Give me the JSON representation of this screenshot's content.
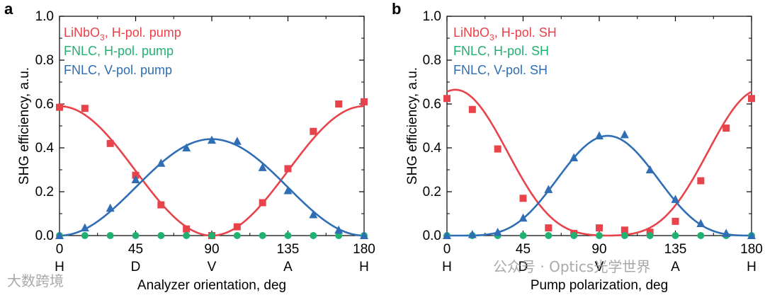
{
  "colors": {
    "red": "#e8424a",
    "green": "#20b070",
    "blue": "#2f6db5"
  },
  "watermarks": {
    "left": "大数跨境",
    "right": "公众号 · Optics光学世界"
  },
  "chart_data": [
    {
      "panel": "a",
      "type": "line+scatter",
      "xlabel": "Analyzer orientation, deg",
      "ylabel": "SHG efficiency, a.u.",
      "xlim": [
        0,
        180
      ],
      "ylim": [
        0,
        1.0
      ],
      "xticks": [
        0,
        45,
        90,
        135,
        180
      ],
      "yticks": [
        0.0,
        0.2,
        0.4,
        0.6,
        0.8,
        1.0
      ],
      "xtick_letters": [
        "H",
        "D",
        "V",
        "A",
        "H"
      ],
      "legend": [
        {
          "label": "LiNbO",
          "sub": "3",
          "rest": ", H-pol. pump",
          "color_key": "red"
        },
        {
          "label": "FNLC, H-pol. pump",
          "sub": "",
          "rest": "",
          "color_key": "green"
        },
        {
          "label": "FNLC, V-pol. pump",
          "sub": "",
          "rest": "",
          "color_key": "blue"
        }
      ],
      "series": [
        {
          "name": "LiNbO3, H-pol. pump",
          "marker": "square",
          "color_key": "red",
          "x": [
            0,
            15,
            30,
            45,
            60,
            75,
            90,
            105,
            120,
            135,
            150,
            165,
            180
          ],
          "y": [
            0.585,
            0.58,
            0.42,
            0.275,
            0.14,
            0.03,
            0.0,
            0.04,
            0.15,
            0.305,
            0.475,
            0.6,
            0.61
          ],
          "fit": {
            "kind": "cos2",
            "amp": 0.59,
            "x0": 0,
            "offset": 0.0
          }
        },
        {
          "name": "FNLC, H-pol. pump",
          "marker": "circle",
          "color_key": "green",
          "x": [
            0,
            15,
            30,
            45,
            60,
            75,
            90,
            105,
            120,
            135,
            150,
            165,
            180
          ],
          "y": [
            0,
            0,
            0,
            0,
            0,
            0,
            0,
            0,
            0,
            0,
            0,
            0,
            0
          ]
        },
        {
          "name": "FNLC, V-pol. pump",
          "marker": "triangle",
          "color_key": "blue",
          "x": [
            0,
            15,
            30,
            45,
            60,
            75,
            90,
            105,
            120,
            135,
            150,
            165,
            180
          ],
          "y": [
            0.0,
            0.035,
            0.125,
            0.255,
            0.33,
            0.4,
            0.435,
            0.43,
            0.31,
            0.205,
            0.095,
            0.025,
            0.0
          ],
          "fit": {
            "kind": "sin2",
            "amp": 0.44,
            "x0": 0,
            "offset": 0.0
          }
        }
      ]
    },
    {
      "panel": "b",
      "type": "line+scatter",
      "xlabel": "Pump polarization, deg",
      "ylabel": "SHG efficiency, a.u.",
      "xlim": [
        0,
        180
      ],
      "ylim": [
        0,
        1.0
      ],
      "xticks": [
        0,
        45,
        90,
        135,
        180
      ],
      "yticks": [
        0.0,
        0.2,
        0.4,
        0.6,
        0.8,
        1.0
      ],
      "xtick_letters": [
        "H",
        "D",
        "V",
        "A",
        "H"
      ],
      "legend": [
        {
          "label": "LiNbO",
          "sub": "3",
          "rest": ", H-pol. SH",
          "color_key": "red"
        },
        {
          "label": "FNLC, H-pol. SH",
          "sub": "",
          "rest": "",
          "color_key": "green"
        },
        {
          "label": "FNLC, V-pol. SH",
          "sub": "",
          "rest": "",
          "color_key": "blue"
        }
      ],
      "series": [
        {
          "name": "LiNbO3, H-pol. SH",
          "marker": "square",
          "color_key": "red",
          "x": [
            0,
            15,
            30,
            45,
            60,
            75,
            90,
            105,
            120,
            135,
            150,
            165,
            180
          ],
          "y": [
            0.625,
            0.575,
            0.395,
            0.17,
            0.035,
            0.01,
            0.035,
            0.025,
            0.015,
            0.065,
            0.25,
            0.49,
            0.625
          ],
          "fit": {
            "kind": "quartic",
            "amp": 0.665,
            "x0": 5,
            "offset": 0.0
          }
        },
        {
          "name": "FNLC, H-pol. SH",
          "marker": "circle",
          "color_key": "green",
          "x": [
            0,
            15,
            30,
            45,
            60,
            75,
            90,
            105,
            120,
            135,
            150,
            165,
            180
          ],
          "y": [
            0,
            0,
            0,
            0,
            0,
            0,
            0,
            0,
            0,
            0,
            0,
            0,
            0
          ]
        },
        {
          "name": "FNLC, V-pol. SH",
          "marker": "triangle",
          "color_key": "blue",
          "x": [
            0,
            15,
            30,
            45,
            60,
            75,
            90,
            105,
            120,
            135,
            150,
            165,
            180
          ],
          "y": [
            0.0,
            0.005,
            0.015,
            0.08,
            0.21,
            0.355,
            0.455,
            0.46,
            0.3,
            0.165,
            0.055,
            0.01,
            0.0
          ],
          "fit": {
            "kind": "quartic_v",
            "amp": 0.455,
            "x0": 95,
            "offset": 0.0
          }
        }
      ]
    }
  ]
}
